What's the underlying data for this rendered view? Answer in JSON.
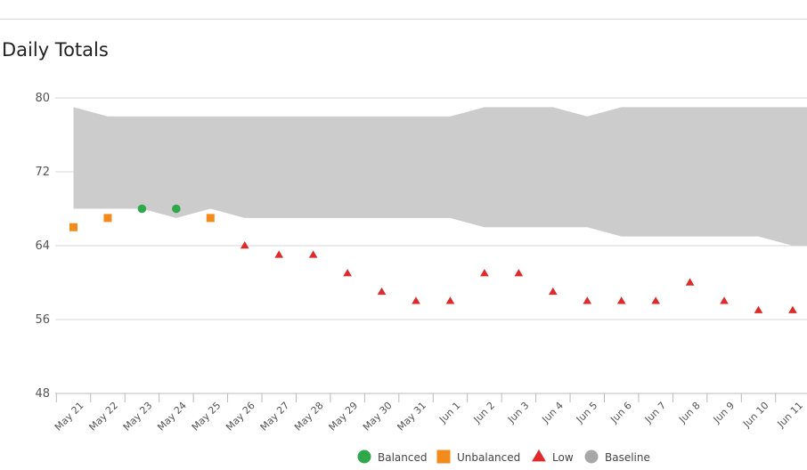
{
  "title": "Daily Totals",
  "colors": {
    "balanced": "#2ea84a",
    "unbalanced": "#f28b1c",
    "low": "#dd2a2a",
    "baseline_fill": "#cccccc",
    "baseline_legend": "#a8a8a8",
    "grid": "#d4d4d4"
  },
  "chart_data": {
    "type": "scatter",
    "title": "Daily Totals",
    "xlabel": "",
    "ylabel": "",
    "ylim": [
      48,
      80
    ],
    "yticks": [
      48,
      56,
      64,
      72,
      80
    ],
    "grid": "horizontal",
    "legend_position": "bottom",
    "categories": [
      "May 21",
      "May 22",
      "May 23",
      "May 24",
      "May 25",
      "May 26",
      "May 27",
      "May 28",
      "May 29",
      "May 30",
      "May 31",
      "Jun 1",
      "Jun 2",
      "Jun 3",
      "Jun 4",
      "Jun 5",
      "Jun 6",
      "Jun 7",
      "Jun 8",
      "Jun 9",
      "Jun 10",
      "Jun 11"
    ],
    "baseline": {
      "name": "Baseline",
      "upper": [
        79,
        78,
        78,
        78,
        78,
        78,
        78,
        78,
        78,
        78,
        78,
        78,
        79,
        79,
        79,
        78,
        79,
        79,
        79,
        79,
        79,
        79
      ],
      "lower": [
        68,
        68,
        68,
        67,
        68,
        67,
        67,
        67,
        67,
        67,
        67,
        67,
        66,
        66,
        66,
        66,
        65,
        65,
        65,
        65,
        65,
        64
      ]
    },
    "series": [
      {
        "name": "Balanced",
        "marker": "circle",
        "points": [
          {
            "x": "May 23",
            "y": 68
          },
          {
            "x": "May 24",
            "y": 68
          }
        ]
      },
      {
        "name": "Unbalanced",
        "marker": "square",
        "points": [
          {
            "x": "May 21",
            "y": 66
          },
          {
            "x": "May 22",
            "y": 67
          },
          {
            "x": "May 25",
            "y": 67
          }
        ]
      },
      {
        "name": "Low",
        "marker": "triangle",
        "points": [
          {
            "x": "May 26",
            "y": 64
          },
          {
            "x": "May 27",
            "y": 63
          },
          {
            "x": "May 28",
            "y": 63
          },
          {
            "x": "May 29",
            "y": 61
          },
          {
            "x": "May 30",
            "y": 59
          },
          {
            "x": "May 31",
            "y": 58
          },
          {
            "x": "Jun 1",
            "y": 58
          },
          {
            "x": "Jun 2",
            "y": 61
          },
          {
            "x": "Jun 3",
            "y": 61
          },
          {
            "x": "Jun 4",
            "y": 59
          },
          {
            "x": "Jun 5",
            "y": 58
          },
          {
            "x": "Jun 6",
            "y": 58
          },
          {
            "x": "Jun 7",
            "y": 58
          },
          {
            "x": "Jun 8",
            "y": 60
          },
          {
            "x": "Jun 9",
            "y": 58
          },
          {
            "x": "Jun 10",
            "y": 57
          },
          {
            "x": "Jun 11",
            "y": 57
          }
        ]
      }
    ],
    "legend": [
      "Balanced",
      "Unbalanced",
      "Low",
      "Baseline"
    ]
  }
}
